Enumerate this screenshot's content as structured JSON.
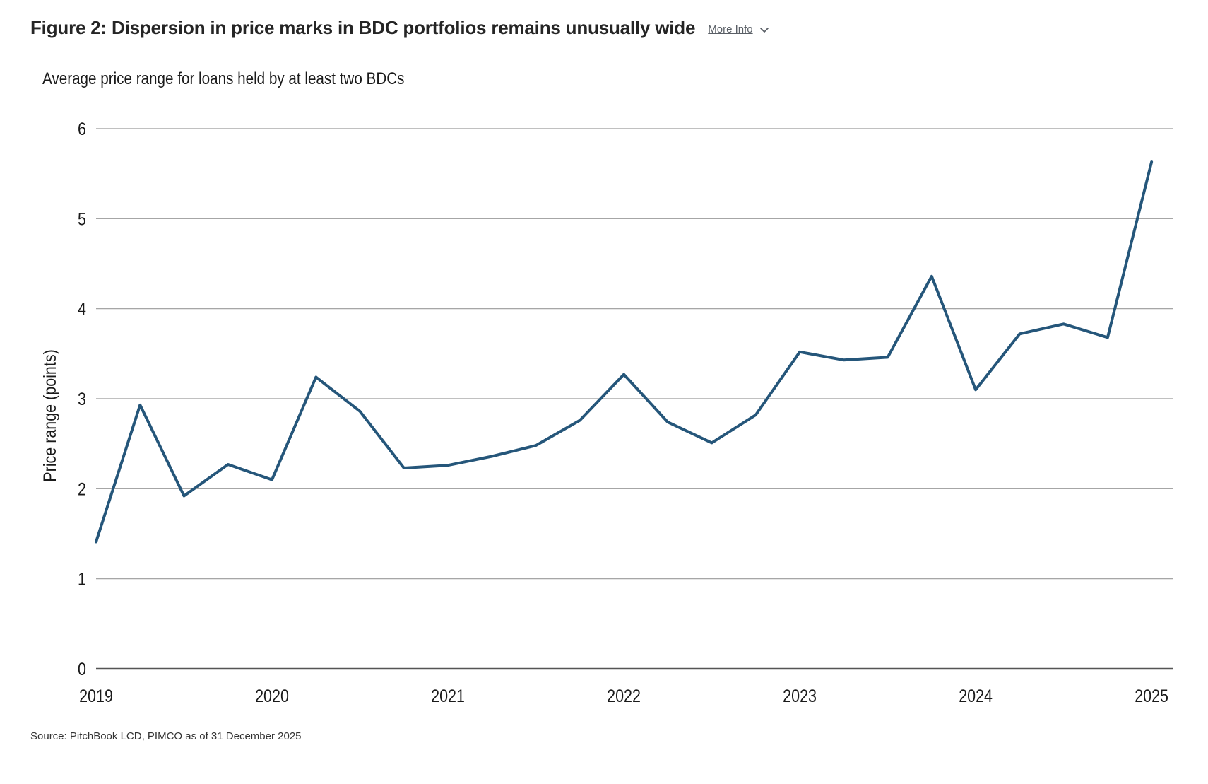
{
  "header": {
    "title": "Figure 2: Dispersion in price marks in BDC portfolios remains unusually wide",
    "more_info_label": "More Info",
    "more_info_icon": "chevron-down-icon"
  },
  "footer": {
    "source": "Source: PitchBook LCD, PIMCO as of 31 December 2025"
  },
  "chart_data": {
    "type": "line",
    "title": "",
    "subtitle": "Average price range for loans held by at least two BDCs",
    "xlabel": "",
    "ylabel": "Price range (points)",
    "xlim": [
      2019.0,
      2025.12
    ],
    "ylim": [
      0,
      6
    ],
    "yticks": [
      0,
      1,
      2,
      3,
      4,
      5,
      6
    ],
    "xticks": [
      2019,
      2020,
      2021,
      2022,
      2023,
      2024,
      2025
    ],
    "grid": true,
    "legend": "none",
    "line_color": "#25567a",
    "series": [
      {
        "x": [
          2019.0,
          2019.25,
          2019.5,
          2019.75,
          2020.0,
          2020.25,
          2020.5,
          2020.75,
          2021.0,
          2021.25,
          2021.5,
          2021.75,
          2022.0,
          2022.25,
          2022.5,
          2022.75,
          2023.0,
          2023.25,
          2023.5,
          2023.75,
          2024.0,
          2024.25,
          2024.5,
          2024.75,
          2025.0
        ],
        "values": [
          1.41,
          2.93,
          1.92,
          2.27,
          2.1,
          3.24,
          2.86,
          2.23,
          2.26,
          2.36,
          2.48,
          2.76,
          3.27,
          2.74,
          2.51,
          2.82,
          3.52,
          3.43,
          3.46,
          4.36,
          3.1,
          3.72,
          3.83,
          3.68,
          5.63
        ]
      }
    ]
  }
}
